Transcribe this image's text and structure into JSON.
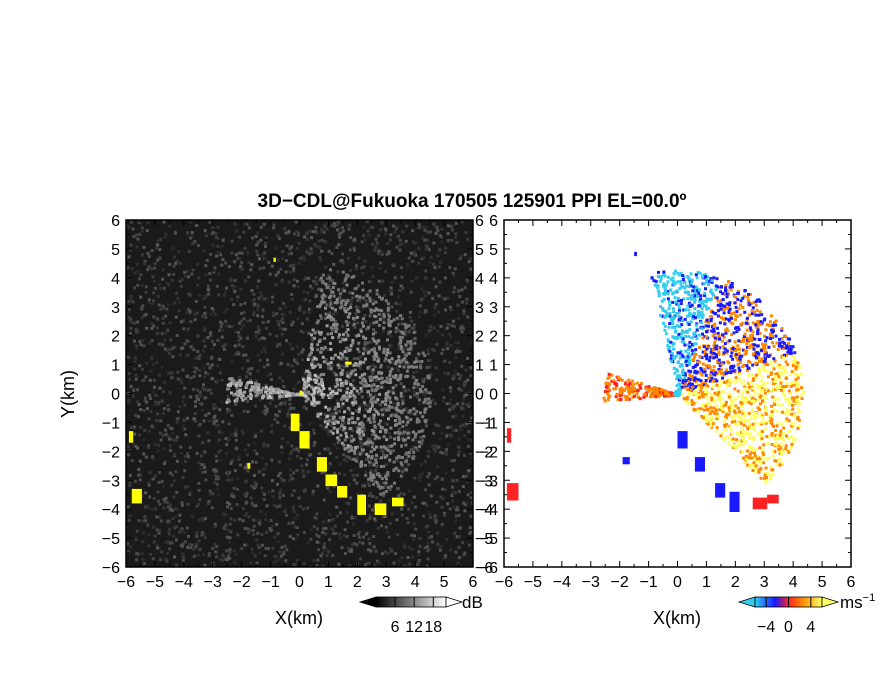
{
  "title": "3D−CDL@Fukuoka 170505 125901 PPI EL=00.0º",
  "colors": {
    "echo_highlight": "#ffff00",
    "velocity_neg_far": "#1a1aff",
    "velocity_neg_near": "#33ccee",
    "velocity_zero": "#ffff66",
    "velocity_pos_mid": "#ff8800",
    "velocity_pos_far": "#ff2222",
    "snr_background": "#1a1a1a"
  },
  "chart_data": [
    {
      "type": "heatmap",
      "name": "snr-ppi",
      "xlabel": "X(km)",
      "ylabel": "Y(km)",
      "xlim": [
        -6,
        6
      ],
      "ylim": [
        -6,
        6
      ],
      "x_ticks": [
        "−6",
        "−5",
        "−4",
        "−3",
        "−2",
        "−1",
        "0",
        "1",
        "2",
        "3",
        "4",
        "5",
        "6"
      ],
      "y_ticks": [
        "6",
        "5",
        "4",
        "3",
        "2",
        "1",
        "0",
        "−1",
        "−2",
        "−3",
        "−4",
        "−5",
        "−6"
      ],
      "colorbar": {
        "unit": "dB",
        "ticks": [
          "6",
          "12",
          "18"
        ],
        "range": [
          0,
          22
        ],
        "colormap": "gray"
      }
    },
    {
      "type": "heatmap",
      "name": "doppler-velocity-ppi",
      "xlabel": "X(km)",
      "ylabel": "",
      "xlim": [
        -6,
        6
      ],
      "ylim": [
        -6,
        6
      ],
      "x_ticks": [
        "−6",
        "−5",
        "−4",
        "−3",
        "−2",
        "−1",
        "0",
        "1",
        "2",
        "3",
        "4",
        "5",
        "6"
      ],
      "y_ticks": [
        "6",
        "5",
        "4",
        "3",
        "2",
        "1",
        "0",
        "−1",
        "−2",
        "−3",
        "−4",
        "−5",
        "−6"
      ],
      "colorbar": {
        "unit": "ms",
        "unit_exponent": "−1",
        "ticks": [
          "−4",
          "0",
          "4"
        ],
        "range": [
          -6,
          6
        ],
        "colormap": "jet-diverging"
      }
    }
  ]
}
